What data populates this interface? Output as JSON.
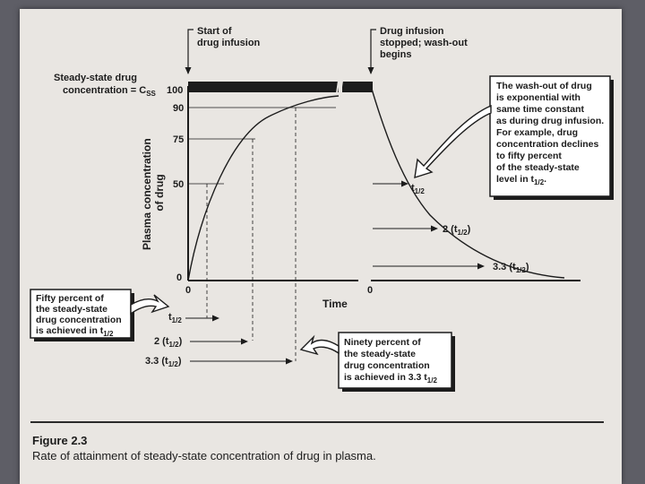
{
  "labels": {
    "start_infusion": [
      "Start of",
      "drug infusion"
    ],
    "infusion_stopped": [
      "Drug infusion",
      "stopped; wash-out",
      "begins"
    ],
    "css_label_1": "Steady-state drug",
    "css_label_2": "concentration = C",
    "css_label_2_sub": "SS",
    "y_axis_label": [
      "Plasma concentration",
      "of drug"
    ],
    "x_axis_label": "Time",
    "y_ticks": [
      "100",
      "90",
      "75",
      "50",
      "0"
    ],
    "x_zero_left": "0",
    "x_zero_right": "0",
    "washout_note": [
      "The wash-out of drug",
      "is exponential with",
      "same time constant",
      "as during drug infusion.",
      "For example, drug",
      "concentration declines",
      "to fifty percent",
      "of the steady-state",
      "level in t"
    ],
    "washout_note_sub": "1/2",
    "washout_note_end": ".",
    "right_t_half": "t",
    "right_t_half_sub": "1/2",
    "right_2t": "2 (t",
    "right_2t_sub": "1/2",
    "right_33t": "3.3 (t",
    "right_33t_sub": "1/2",
    "fifty_note": [
      "Fifty percent of",
      "the steady-state",
      "drug concentration",
      "is achieved in t"
    ],
    "fifty_note_sub": "1/2",
    "left_t_half": "t",
    "left_t_half_sub": "1/2",
    "left_2t": "2 (t",
    "left_2t_sub": "1/2",
    "left_33t": "3.3 (t",
    "left_33t_sub": "1/2",
    "ninety_note": [
      "Ninety percent of",
      "the steady-state",
      "drug concentration",
      "is achieved in 3.3 t"
    ],
    "ninety_note_sub": "1/2"
  },
  "caption": {
    "title": "Figure 2.3",
    "text": "Rate of attainment of steady-state concentration of drug in plasma."
  },
  "colors": {
    "ink": "#1c1c1c",
    "paper": "#e9e6e2",
    "background": "#5e5e66"
  }
}
